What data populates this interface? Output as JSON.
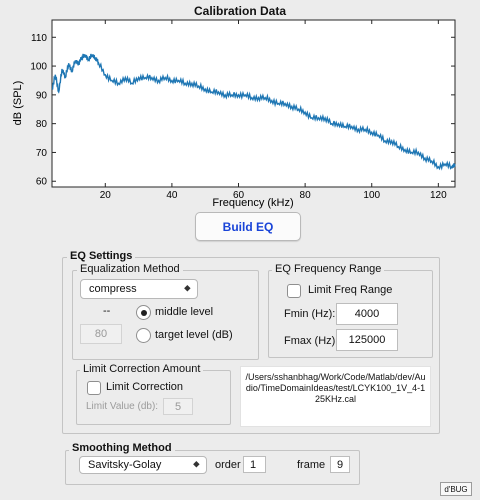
{
  "chart_data": {
    "type": "line",
    "title": "Calibration Data",
    "xlabel": "Frequency (kHz)",
    "ylabel": "dB (SPL)",
    "xlim": [
      4,
      125
    ],
    "ylim": [
      58,
      116
    ],
    "xticks": [
      20,
      40,
      60,
      80,
      100,
      120
    ],
    "yticks": [
      60,
      70,
      80,
      90,
      100,
      110
    ],
    "grid": false,
    "color": "#1f77b4",
    "series": [
      {
        "x": [
          4,
          5,
          6,
          7,
          8,
          9,
          10,
          11,
          12,
          13,
          14,
          15,
          16,
          17,
          18,
          20,
          22,
          24,
          26,
          28,
          30,
          32,
          34,
          36,
          38,
          40,
          42,
          44,
          46,
          48,
          50,
          52,
          54,
          56,
          58,
          60,
          62,
          64,
          66,
          68,
          70,
          72,
          74,
          76,
          78,
          80,
          82,
          84,
          86,
          88,
          90,
          92,
          94,
          96,
          98,
          100,
          102,
          104,
          106,
          108,
          110,
          112,
          114,
          116,
          118,
          120,
          122,
          124,
          125
        ],
        "values": [
          92,
          97,
          91,
          99,
          96,
          101,
          98,
          102,
          101,
          103,
          104,
          102,
          104,
          103,
          101,
          97,
          95,
          94,
          96,
          94,
          96,
          96,
          96,
          95,
          96,
          95,
          95,
          94,
          94,
          93,
          92,
          91,
          91,
          90,
          90,
          90,
          90,
          89,
          89,
          89,
          88,
          87,
          87,
          86,
          85,
          84,
          82,
          82,
          82,
          80,
          80,
          79,
          79,
          78,
          78,
          77,
          76,
          74,
          74,
          72,
          71,
          70,
          70,
          68,
          67,
          65,
          66,
          65,
          66
        ]
      }
    ]
  },
  "build_button": {
    "label": "Build EQ"
  },
  "eq_settings": {
    "title": "EQ Settings",
    "equalization_method": {
      "title": "Equalization Method",
      "method_value": "compress",
      "dash": "--",
      "level_value": "80",
      "middle_level_label": "middle level",
      "target_level_label": "target level (dB)",
      "selected": "middle level"
    },
    "frequency_range": {
      "title": "EQ Frequency Range",
      "limit_label": "Limit Freq Range",
      "fmin_label": "Fmin (Hz):",
      "fmin_value": "4000",
      "fmax_label": "Fmax (Hz):",
      "fmax_value": "125000"
    },
    "limit_correction": {
      "title": "Limit Correction Amount",
      "checkbox_label": "Limit Correction",
      "value_label": "Limit Value (db):",
      "value": "5"
    },
    "file_path": "/Users/sshanbhag/Work/Code/Matlab/dev/Audio/TimeDomainIdeas/test/LCYK100_1V_4-125KHz.cal"
  },
  "smoothing": {
    "title": "Smoothing Method",
    "method_value": "Savitsky-Golay",
    "order_label": "order",
    "order_value": "1",
    "frame_label": "frame",
    "frame_value": "9"
  },
  "debug_button": {
    "label": "d'BUG"
  },
  "icons": {
    "popup_chevron": "chevron-updown-icon"
  }
}
